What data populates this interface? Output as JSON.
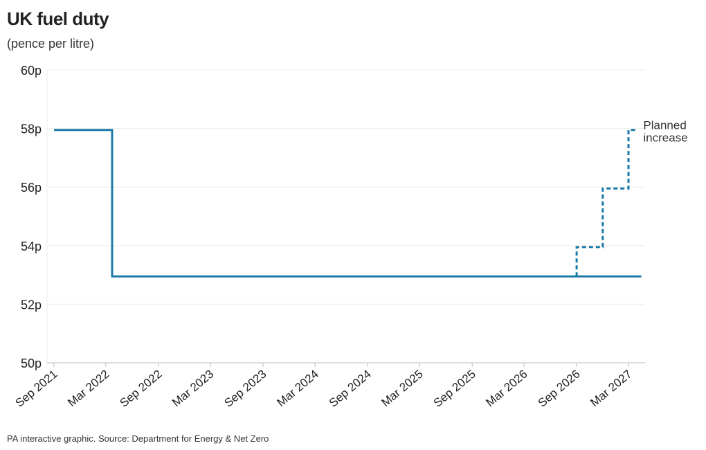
{
  "header": {
    "title": "UK fuel duty",
    "subtitle": "(pence per litre)"
  },
  "footer": {
    "source": "PA interactive graphic. Source: Department for Energy & Net Zero"
  },
  "colors": {
    "line": "#1b7aaa",
    "grid": "#ececec",
    "axis": "#bbbbbb",
    "text": "#222222"
  },
  "chart_data": {
    "type": "line",
    "title": "UK fuel duty",
    "ylabel": "(pence per litre)",
    "xlabel": "",
    "ylim": [
      50,
      60
    ],
    "yticks": [
      {
        "value": 50,
        "label": "50p"
      },
      {
        "value": 52,
        "label": "52p"
      },
      {
        "value": 54,
        "label": "54p"
      },
      {
        "value": 56,
        "label": "56p"
      },
      {
        "value": 58,
        "label": "58p"
      },
      {
        "value": 60,
        "label": "60p"
      }
    ],
    "xlim": [
      "2021-09-01",
      "2027-04-25"
    ],
    "xticks": [
      {
        "date": "2021-09-01",
        "label": "Sep 2021"
      },
      {
        "date": "2022-03-01",
        "label": "Mar 2022"
      },
      {
        "date": "2022-09-01",
        "label": "Sep 2022"
      },
      {
        "date": "2023-03-01",
        "label": "Mar 2023"
      },
      {
        "date": "2023-09-01",
        "label": "Sep 2023"
      },
      {
        "date": "2024-03-01",
        "label": "Mar 2024"
      },
      {
        "date": "2024-09-01",
        "label": "Sep 2024"
      },
      {
        "date": "2025-03-01",
        "label": "Mar 2025"
      },
      {
        "date": "2025-09-01",
        "label": "Sep 2025"
      },
      {
        "date": "2026-03-01",
        "label": "Mar 2026"
      },
      {
        "date": "2026-09-01",
        "label": "Sep 2026"
      },
      {
        "date": "2027-03-01",
        "label": "Mar 2027"
      }
    ],
    "grid": true,
    "series": [
      {
        "style": "solid",
        "step": true,
        "points": [
          {
            "x": "2021-09-01",
            "y": 57.95
          },
          {
            "x": "2022-03-23",
            "y": 57.95
          },
          {
            "x": "2022-03-23",
            "y": 52.95
          },
          {
            "x": "2027-04-15",
            "y": 52.95
          }
        ]
      },
      {
        "style": "dashed",
        "step": true,
        "points": [
          {
            "x": "2026-09-01",
            "y": 52.95
          },
          {
            "x": "2026-09-01",
            "y": 53.95
          },
          {
            "x": "2026-12-01",
            "y": 53.95
          },
          {
            "x": "2026-12-01",
            "y": 55.95
          },
          {
            "x": "2027-03-01",
            "y": 55.95
          },
          {
            "x": "2027-03-01",
            "y": 57.95
          },
          {
            "x": "2027-03-31",
            "y": 57.95
          }
        ]
      }
    ],
    "annotations": [
      {
        "text": [
          "Planned",
          "increase"
        ],
        "anchor_x": "2027-03-31",
        "anchor_y": 57.95
      }
    ]
  }
}
